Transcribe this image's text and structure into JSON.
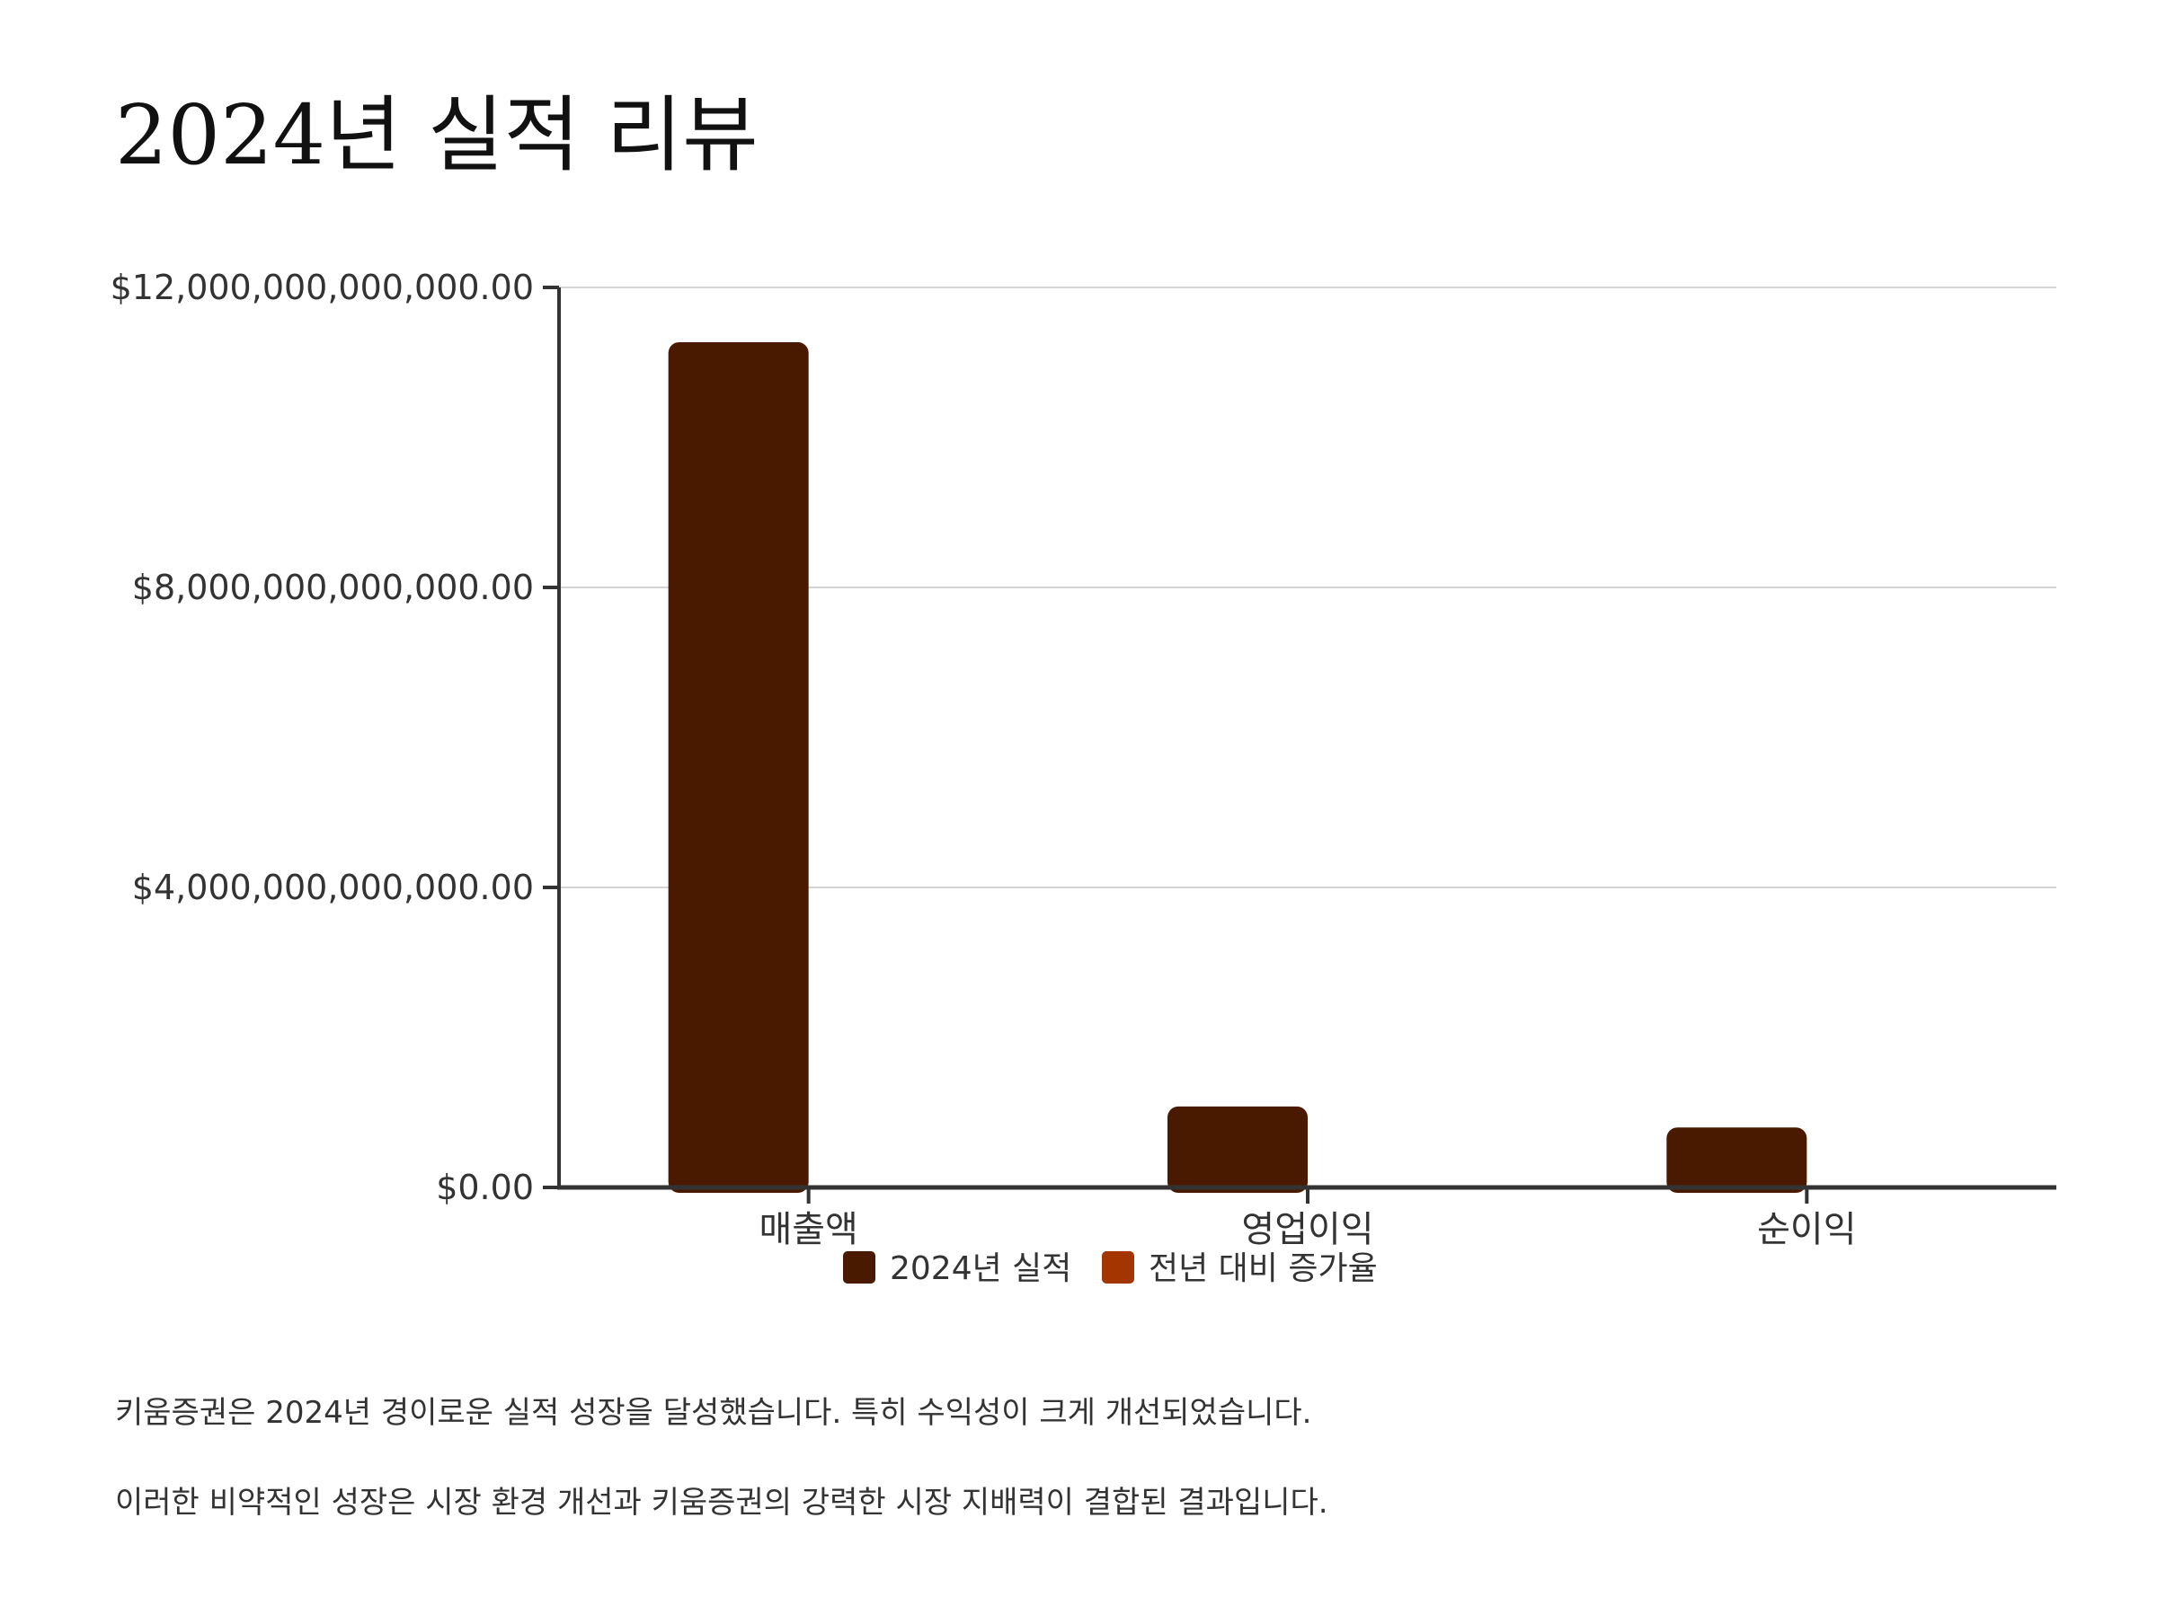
{
  "title": "2024년 실적 리뷰",
  "paragraphs": [
    "키움증권은 2024년 경이로운 실적 성장을 달성했습니다. 특히 수익성이 크게 개선되었습니다.",
    "이러한 비약적인 성장은 시장 환경 개선과 키움증권의 강력한 시장 지배력이 결합된 결과입니다."
  ],
  "colors": {
    "series_2024": "#4a1a00",
    "series_growth": "#a33500",
    "grid": "#d4d4d4",
    "axis": "#333333"
  },
  "chart_data": {
    "type": "bar",
    "categories": [
      "매출액",
      "영업이익",
      "순이익"
    ],
    "series": [
      {
        "name": "2024년 실적",
        "values": [
          11270000000000,
          1080000000000,
          800000000000
        ]
      },
      {
        "name": "전년 대비 증가율",
        "values": [
          0,
          0,
          0
        ]
      }
    ],
    "ylim": [
      0,
      12000000000000
    ],
    "yticks": [
      0,
      4000000000000,
      8000000000000,
      12000000000000
    ],
    "ytick_labels": [
      "$0.00",
      "$4,000,000,000,000.00",
      "$8,000,000,000,000.00",
      "$12,000,000,000,000.00"
    ],
    "grid": true,
    "legend": "bottom-center"
  }
}
